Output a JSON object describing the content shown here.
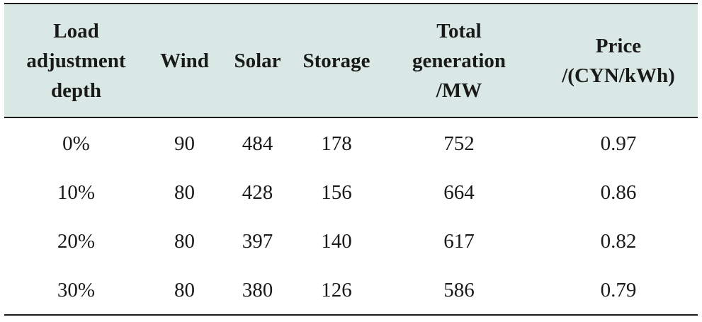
{
  "table": {
    "headers": [
      {
        "lines": [
          "Load",
          "adjustment",
          "depth"
        ]
      },
      {
        "lines": [
          "Wind"
        ]
      },
      {
        "lines": [
          "Solar"
        ]
      },
      {
        "lines": [
          "Storage"
        ]
      },
      {
        "lines": [
          "Total",
          "generation",
          "/MW"
        ]
      },
      {
        "lines": [
          "Price",
          "/(CYN/kWh)"
        ]
      }
    ],
    "rows": [
      [
        "0%",
        "90",
        "484",
        "178",
        "752",
        "0.97"
      ],
      [
        "10%",
        "80",
        "428",
        "156",
        "664",
        "0.86"
      ],
      [
        "20%",
        "80",
        "397",
        "140",
        "617",
        "0.82"
      ],
      [
        "30%",
        "80",
        "380",
        "126",
        "586",
        "0.79"
      ]
    ]
  },
  "colors": {
    "header_background": "#d9e8e4",
    "rule": "#1a1a1a"
  }
}
